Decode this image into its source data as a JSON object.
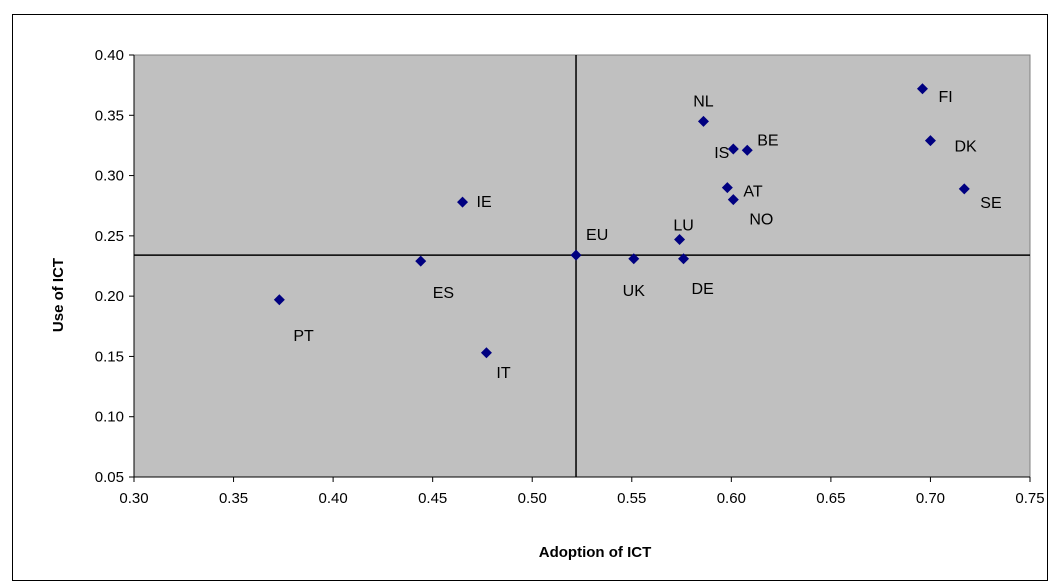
{
  "chart_data": {
    "type": "scatter",
    "title": "",
    "xlabel": "Adoption of ICT",
    "ylabel": "Use of ICT",
    "xlim": [
      0.3,
      0.75
    ],
    "ylim": [
      0.05,
      0.4
    ],
    "xticks": [
      "0.30",
      "0.35",
      "0.40",
      "0.45",
      "0.50",
      "0.55",
      "0.60",
      "0.65",
      "0.70",
      "0.75"
    ],
    "yticks": [
      "0.05",
      "0.10",
      "0.15",
      "0.20",
      "0.25",
      "0.30",
      "0.35",
      "0.40"
    ],
    "grid": false,
    "legend": "none",
    "background_color": "#c0c0c0",
    "marker_color": "#000080",
    "reference_lines": {
      "x": 0.522,
      "y": 0.234
    },
    "points": [
      {
        "label": "FI",
        "x": 0.696,
        "y": 0.372
      },
      {
        "label": "NL",
        "x": 0.586,
        "y": 0.345
      },
      {
        "label": "DK",
        "x": 0.7,
        "y": 0.329
      },
      {
        "label": "IS",
        "x": 0.601,
        "y": 0.322
      },
      {
        "label": "BE",
        "x": 0.608,
        "y": 0.321
      },
      {
        "label": "AT",
        "x": 0.598,
        "y": 0.29
      },
      {
        "label": "SE",
        "x": 0.717,
        "y": 0.289
      },
      {
        "label": "NO",
        "x": 0.601,
        "y": 0.28
      },
      {
        "label": "IE",
        "x": 0.465,
        "y": 0.278
      },
      {
        "label": "LU",
        "x": 0.574,
        "y": 0.247
      },
      {
        "label": "EU",
        "x": 0.522,
        "y": 0.234
      },
      {
        "label": "UK",
        "x": 0.551,
        "y": 0.231
      },
      {
        "label": "DE",
        "x": 0.576,
        "y": 0.231
      },
      {
        "label": "ES",
        "x": 0.444,
        "y": 0.229
      },
      {
        "label": "PT",
        "x": 0.373,
        "y": 0.197
      },
      {
        "label": "IT",
        "x": 0.477,
        "y": 0.153
      }
    ]
  }
}
